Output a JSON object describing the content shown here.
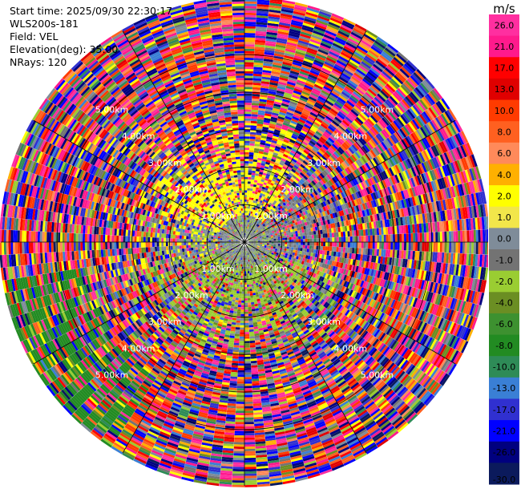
{
  "header": {
    "start_time": "Start time: 2025/09/30 22:30:17",
    "instrument": "WLS200s-181",
    "field": "Field: VEL",
    "elevation": "Elevation(deg): 35.00",
    "nrays": "NRays: 120"
  },
  "chart_data": {
    "type": "heatmap",
    "subtype": "ppi-polar",
    "nrays": 120,
    "max_range_km": 6.5,
    "range_rings_km": [
      1,
      2,
      3,
      4,
      5
    ],
    "range_ring_labels": [
      "1.00km",
      "2.00km",
      "3.00km",
      "4.00km",
      "5.00km"
    ],
    "colorbar": {
      "unit": "m/s",
      "ticks": [
        "26.0",
        "21.0",
        "17.0",
        "13.0",
        "10.0",
        "8.0",
        "6.0",
        "4.0",
        "2.0",
        "1.0",
        "0.0",
        "-1.0",
        "-2.0",
        "-4.0",
        "-6.0",
        "-8.0",
        "-10.0",
        "-13.0",
        "-17.0",
        "-21.0",
        "-26.0",
        "-30.0"
      ],
      "colors": [
        "#ff2fa0",
        "#ff1a8c",
        "#ff0000",
        "#e00000",
        "#ff3b00",
        "#ff6020",
        "#ff8a5a",
        "#ffb000",
        "#ffff00",
        "#f2e64a",
        "#7f8c99",
        "#737373",
        "#9acd32",
        "#6b8e23",
        "#3d9130",
        "#228b22",
        "#2e8b57",
        "#3a7fd5",
        "#3030d0",
        "#0000ff",
        "#00007f",
        "#0b1a5c"
      ]
    }
  }
}
